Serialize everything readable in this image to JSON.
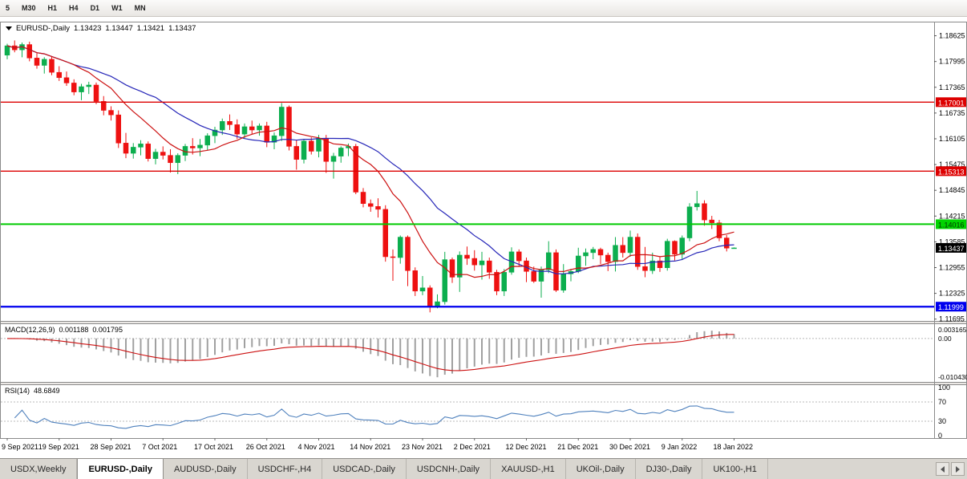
{
  "toolbar": {
    "timeframes": [
      "5",
      "M30",
      "H1",
      "H4",
      "D1",
      "W1",
      "MN"
    ]
  },
  "chart": {
    "title": {
      "symbol": "EURUSD-,Daily",
      "open": "1.13423",
      "high": "1.13447",
      "low": "1.13421",
      "close": "1.13437"
    },
    "price_axis": {
      "min": 1.1165,
      "max": 1.1895,
      "labels": [
        "1.18625",
        "1.17995",
        "1.17365",
        "1.16735",
        "1.16105",
        "1.15475",
        "1.14845",
        "1.14215",
        "1.13585",
        "1.12955",
        "1.12325",
        "1.11695"
      ]
    },
    "levels": [
      {
        "price": 1.17001,
        "label": "1.17001",
        "line_color": "#dd0000",
        "line_width": 1.4,
        "tag_bg": "#dd0000",
        "tag_fg": "#ffffff"
      },
      {
        "price": 1.15313,
        "label": "1.15313",
        "line_color": "#dd0000",
        "line_width": 1.4,
        "tag_bg": "#dd0000",
        "tag_fg": "#ffffff"
      },
      {
        "price": 1.14016,
        "label": "1.14016",
        "line_color": "#00ca00",
        "line_width": 2.0,
        "tag_bg": "#00d400",
        "tag_fg": "#003300"
      },
      {
        "price": 1.11999,
        "label": "1.11999",
        "line_color": "#0000ee",
        "line_width": 2.2,
        "tag_bg": "#0000ee",
        "tag_fg": "#ffffff"
      }
    ],
    "current_price": {
      "value": 1.13437,
      "label": "1.13437",
      "tag_bg": "#000000",
      "tag_fg": "#ffffff"
    },
    "colors": {
      "bull": "#0cae4e",
      "bear": "#ee1111",
      "ma_slow": "#2626b8",
      "ma_fast": "#cc1111",
      "macd_hist": "#a0a0a0",
      "macd_signal": "#cc1111",
      "rsi_line": "#4f81bd",
      "dotted": "#b8b8b8",
      "border": "#8a8a8a"
    },
    "candles": [
      [
        1.1815,
        1.1843,
        1.1805,
        1.1838
      ],
      [
        1.1838,
        1.1851,
        1.1822,
        1.1828
      ],
      [
        1.1828,
        1.1846,
        1.181,
        1.1841
      ],
      [
        1.1841,
        1.1848,
        1.18,
        1.1808
      ],
      [
        1.1808,
        1.182,
        1.1782,
        1.179
      ],
      [
        1.179,
        1.181,
        1.177,
        1.1805
      ],
      [
        1.1805,
        1.1812,
        1.1766,
        1.1773
      ],
      [
        1.1773,
        1.1788,
        1.1752,
        1.176
      ],
      [
        1.176,
        1.1775,
        1.174,
        1.1747
      ],
      [
        1.1747,
        1.1756,
        1.1717,
        1.1725
      ],
      [
        1.1725,
        1.1745,
        1.1705,
        1.1738
      ],
      [
        1.1738,
        1.175,
        1.172,
        1.1742
      ],
      [
        1.1742,
        1.1748,
        1.1695,
        1.1702
      ],
      [
        1.1702,
        1.1715,
        1.1668,
        1.168
      ],
      [
        1.168,
        1.169,
        1.1655,
        1.1669
      ],
      [
        1.1669,
        1.168,
        1.1588,
        1.16
      ],
      [
        1.16,
        1.1625,
        1.1563,
        1.1575
      ],
      [
        1.1575,
        1.16,
        1.1562,
        1.159
      ],
      [
        1.159,
        1.1607,
        1.157,
        1.1598
      ],
      [
        1.1598,
        1.1604,
        1.1555,
        1.1562
      ],
      [
        1.1562,
        1.1586,
        1.1548,
        1.1578
      ],
      [
        1.1578,
        1.1592,
        1.156,
        1.157
      ],
      [
        1.157,
        1.1585,
        1.1528,
        1.1552
      ],
      [
        1.1552,
        1.1575,
        1.1524,
        1.157
      ],
      [
        1.157,
        1.1598,
        1.1556,
        1.1592
      ],
      [
        1.1592,
        1.1612,
        1.1572,
        1.1588
      ],
      [
        1.1588,
        1.161,
        1.1568,
        1.1595
      ],
      [
        1.1595,
        1.1624,
        1.1582,
        1.1618
      ],
      [
        1.1618,
        1.164,
        1.16,
        1.1632
      ],
      [
        1.1632,
        1.166,
        1.162,
        1.1653
      ],
      [
        1.1653,
        1.167,
        1.1632,
        1.1645
      ],
      [
        1.1645,
        1.1658,
        1.161,
        1.1622
      ],
      [
        1.1622,
        1.1648,
        1.1612,
        1.164
      ],
      [
        1.164,
        1.1655,
        1.1622,
        1.1632
      ],
      [
        1.1632,
        1.1648,
        1.1618,
        1.1642
      ],
      [
        1.1642,
        1.1652,
        1.159,
        1.1602
      ],
      [
        1.1602,
        1.1626,
        1.1585,
        1.1618
      ],
      [
        1.1618,
        1.1698,
        1.1605,
        1.1688
      ],
      [
        1.1688,
        1.1692,
        1.1582,
        1.1592
      ],
      [
        1.1592,
        1.1608,
        1.1535,
        1.156
      ],
      [
        1.156,
        1.161,
        1.155,
        1.1605
      ],
      [
        1.1605,
        1.1614,
        1.1572,
        1.158
      ],
      [
        1.158,
        1.162,
        1.1565,
        1.1612
      ],
      [
        1.1612,
        1.162,
        1.1527,
        1.1555
      ],
      [
        1.1555,
        1.1576,
        1.1513,
        1.1568
      ],
      [
        1.1568,
        1.1592,
        1.1552,
        1.1588
      ],
      [
        1.1588,
        1.1599,
        1.1568,
        1.1592
      ],
      [
        1.1592,
        1.1598,
        1.1475,
        1.148
      ],
      [
        1.148,
        1.149,
        1.1443,
        1.1452
      ],
      [
        1.1452,
        1.1462,
        1.1432,
        1.1445
      ],
      [
        1.1445,
        1.1465,
        1.1418,
        1.1438
      ],
      [
        1.1438,
        1.1448,
        1.131,
        1.1322
      ],
      [
        1.1322,
        1.134,
        1.1263,
        1.132
      ],
      [
        1.132,
        1.1374,
        1.1305,
        1.137
      ],
      [
        1.137,
        1.1374,
        1.125,
        1.1288
      ],
      [
        1.1288,
        1.1296,
        1.1226,
        1.1238
      ],
      [
        1.1238,
        1.1275,
        1.1228,
        1.1246
      ],
      [
        1.1246,
        1.1252,
        1.1186,
        1.12
      ],
      [
        1.12,
        1.123,
        1.1196,
        1.1212
      ],
      [
        1.1212,
        1.1334,
        1.1205,
        1.1315
      ],
      [
        1.1315,
        1.132,
        1.1258,
        1.1272
      ],
      [
        1.1272,
        1.1335,
        1.1236,
        1.1326
      ],
      [
        1.1326,
        1.1347,
        1.1302,
        1.1318
      ],
      [
        1.1318,
        1.1338,
        1.1288,
        1.1302
      ],
      [
        1.1302,
        1.1334,
        1.1266,
        1.1312
      ],
      [
        1.1312,
        1.132,
        1.1268,
        1.1284
      ],
      [
        1.1284,
        1.129,
        1.1228,
        1.1238
      ],
      [
        1.1238,
        1.1292,
        1.1226,
        1.1284
      ],
      [
        1.1284,
        1.1345,
        1.1278,
        1.1334
      ],
      [
        1.1334,
        1.134,
        1.1298,
        1.1312
      ],
      [
        1.1312,
        1.132,
        1.126,
        1.1286
      ],
      [
        1.1286,
        1.1298,
        1.1258,
        1.1262
      ],
      [
        1.1262,
        1.1298,
        1.1222,
        1.129
      ],
      [
        1.129,
        1.136,
        1.1282,
        1.1332
      ],
      [
        1.1332,
        1.134,
        1.1236,
        1.124
      ],
      [
        1.124,
        1.1304,
        1.1234,
        1.128
      ],
      [
        1.128,
        1.1292,
        1.1262,
        1.1286
      ],
      [
        1.1286,
        1.1344,
        1.1282,
        1.1324
      ],
      [
        1.1324,
        1.1342,
        1.13,
        1.1332
      ],
      [
        1.1332,
        1.1346,
        1.1316,
        1.134
      ],
      [
        1.134,
        1.1344,
        1.1304,
        1.1326
      ],
      [
        1.1326,
        1.1332,
        1.1287,
        1.131
      ],
      [
        1.131,
        1.137,
        1.1286,
        1.135
      ],
      [
        1.135,
        1.137,
        1.132,
        1.1332
      ],
      [
        1.1332,
        1.1386,
        1.1322,
        1.137
      ],
      [
        1.137,
        1.1379,
        1.129,
        1.1298
      ],
      [
        1.1298,
        1.1346,
        1.1272,
        1.1288
      ],
      [
        1.1288,
        1.1332,
        1.128,
        1.1312
      ],
      [
        1.1312,
        1.1322,
        1.1285,
        1.1295
      ],
      [
        1.1295,
        1.1366,
        1.1288,
        1.136
      ],
      [
        1.136,
        1.1362,
        1.1313,
        1.1328
      ],
      [
        1.1328,
        1.1374,
        1.1314,
        1.1368
      ],
      [
        1.1368,
        1.1453,
        1.136,
        1.1444
      ],
      [
        1.1444,
        1.1483,
        1.1435,
        1.1452
      ],
      [
        1.1452,
        1.146,
        1.1398,
        1.1412
      ],
      [
        1.1412,
        1.1422,
        1.139,
        1.1405
      ],
      [
        1.1405,
        1.1412,
        1.136,
        1.1368
      ],
      [
        1.1368,
        1.1375,
        1.1335,
        1.1343
      ],
      [
        1.13423,
        1.13447,
        1.13421,
        1.13437
      ]
    ],
    "x_labels": [
      "9 Sep 2021",
      "19 Sep 2021",
      "28 Sep 2021",
      "7 Oct 2021",
      "17 Oct 2021",
      "26 Oct 2021",
      "4 Nov 2021",
      "14 Nov 2021",
      "23 Nov 2021",
      "2 Dec 2021",
      "12 Dec 2021",
      "21 Dec 2021",
      "30 Dec 2021",
      "9 Jan 2022",
      "18 Jan 2022"
    ],
    "macd": {
      "label": "MACD(12,26,9)",
      "value1": "0.001188",
      "value2": "0.001795",
      "axis": [
        {
          "value": 0.003165,
          "text": "0.003165"
        },
        {
          "value": 0,
          "text": "0.00"
        },
        {
          "value": -0.01043,
          "text": "-0.010430"
        }
      ]
    },
    "rsi": {
      "label": "RSI(14)",
      "value": "48.6849",
      "axis": [
        {
          "value": 100,
          "text": "100"
        },
        {
          "value": 70,
          "text": "70"
        },
        {
          "value": 30,
          "text": "30"
        },
        {
          "value": 0,
          "text": "0"
        }
      ],
      "levels": [
        70,
        30
      ]
    }
  },
  "tabbar": {
    "tabs": [
      {
        "label": "USDX,Weekly",
        "active": false
      },
      {
        "label": "EURUSD-,Daily",
        "active": true
      },
      {
        "label": "AUDUSD-,Daily",
        "active": false
      },
      {
        "label": "USDCHF-,H4",
        "active": false
      },
      {
        "label": "USDCAD-,Daily",
        "active": false
      },
      {
        "label": "USDCNH-,Daily",
        "active": false
      },
      {
        "label": "XAUUSD-,H1",
        "active": false
      },
      {
        "label": "UKOil-,Daily",
        "active": false
      },
      {
        "label": "DJ30-,Daily",
        "active": false
      },
      {
        "label": "UK100-,H1",
        "active": false
      }
    ]
  }
}
